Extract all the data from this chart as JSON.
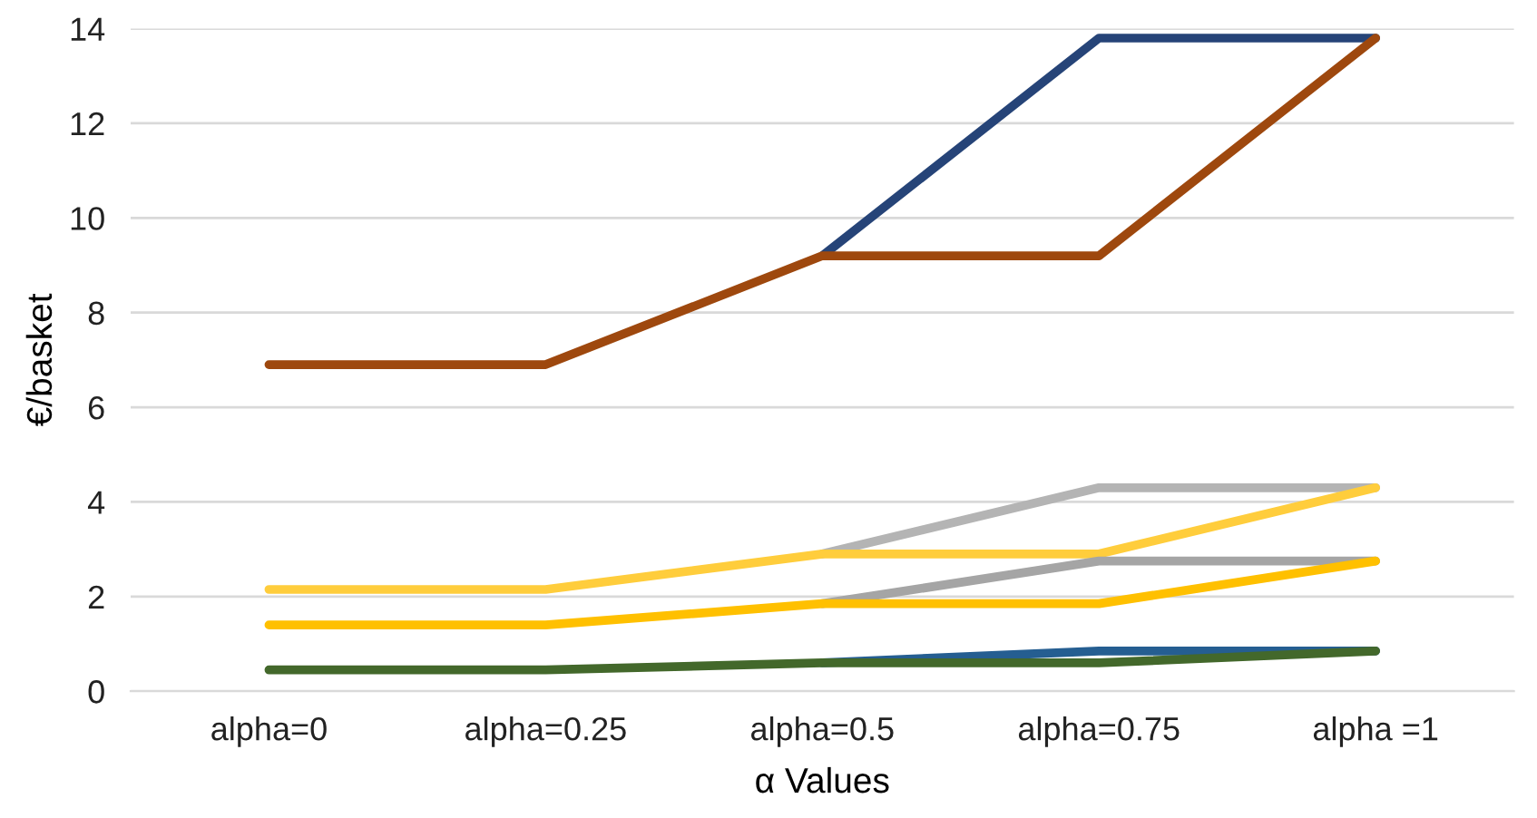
{
  "chart_data": {
    "type": "line",
    "xlabel": "α Values",
    "ylabel": "€/basket",
    "categories": [
      "alpha=0",
      "alpha=0.25",
      "alpha=0.5",
      "alpha=0.75",
      "alpha =1"
    ],
    "ylim": [
      0,
      14
    ],
    "yticks": [
      0,
      2,
      4,
      6,
      8,
      10,
      12,
      14
    ],
    "grid": "y",
    "line_style": "solid",
    "marker": "none",
    "series": [
      {
        "color": "#264478",
        "values": [
          null,
          null,
          9.2,
          13.8,
          13.8
        ]
      },
      {
        "color": "#9e480e",
        "values": [
          6.9,
          6.9,
          9.2,
          9.2,
          13.8
        ]
      },
      {
        "color": "#b4b4b4",
        "values": [
          null,
          null,
          2.9,
          4.3,
          4.3
        ]
      },
      {
        "color": "#ffcd3c",
        "values": [
          2.15,
          2.15,
          2.9,
          2.9,
          4.3
        ]
      },
      {
        "color": "#a5a5a5",
        "values": [
          null,
          null,
          1.85,
          2.75,
          2.75
        ]
      },
      {
        "color": "#ffc000",
        "values": [
          1.4,
          1.4,
          1.85,
          1.85,
          2.75
        ]
      },
      {
        "color": "#255e91",
        "values": [
          null,
          null,
          0.6,
          0.85,
          0.85
        ]
      },
      {
        "color": "#43682b",
        "values": [
          0.45,
          0.45,
          0.6,
          0.6,
          0.85
        ]
      }
    ]
  }
}
